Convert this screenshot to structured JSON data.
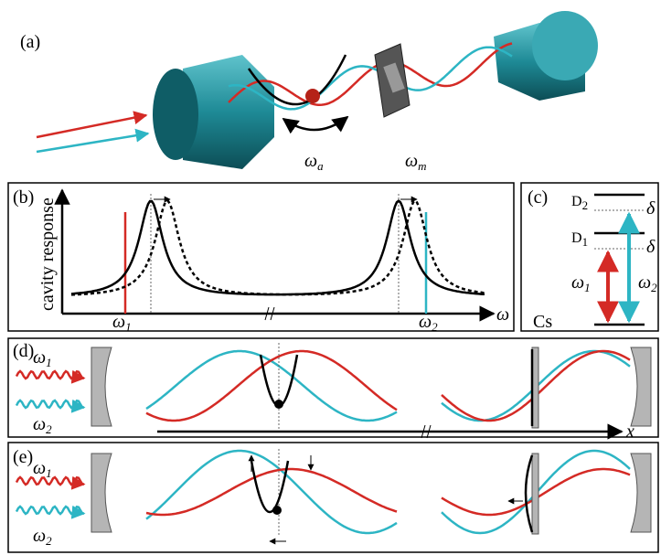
{
  "panels": {
    "a": {
      "label": "(a)",
      "omega_a": {
        "symbol": "ω",
        "sub": "a"
      },
      "omega_m": {
        "symbol": "ω",
        "sub": "m"
      }
    },
    "b": {
      "label": "(b)",
      "y_label": "cavity response",
      "omega_1": {
        "symbol": "ω",
        "sub": "1"
      },
      "omega_2": {
        "symbol": "ω",
        "sub": "2"
      },
      "x_label": "ω"
    },
    "c": {
      "label": "(c)",
      "d2": {
        "symbol": "D",
        "sub": "2"
      },
      "d1": {
        "symbol": "D",
        "sub": "1"
      },
      "delta_upper": "δ",
      "delta_lower": "δ",
      "omega_1": {
        "symbol": "ω",
        "sub": "1"
      },
      "omega_2": {
        "symbol": "ω",
        "sub": "2"
      },
      "ground": "Cs"
    },
    "d": {
      "label": "(d)",
      "omega_1": {
        "symbol": "ω",
        "sub": "1"
      },
      "omega_2": {
        "symbol": "ω",
        "sub": "2"
      },
      "x_label": "x"
    },
    "e": {
      "label": "(e)",
      "omega_1": {
        "symbol": "ω",
        "sub": "1"
      },
      "omega_2": {
        "symbol": "ω",
        "sub": "2"
      }
    }
  }
}
